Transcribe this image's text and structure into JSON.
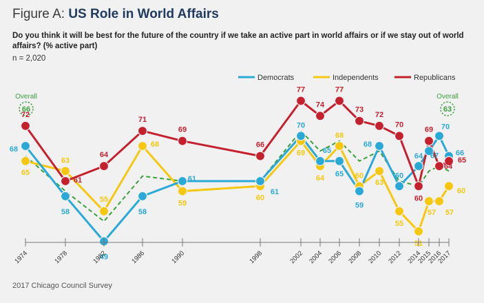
{
  "header": {
    "figure_label": "Figure A: ",
    "title": "US Role in World Affairs",
    "question": "Do you think it will be best for the future of the country if we take an active part in world affairs or if we stay out of world affairs? (% active part)",
    "n": "n = 2,020"
  },
  "footer": {
    "source": "2017 Chicago Council Survey"
  },
  "colors": {
    "democrats": "#2aa9d6",
    "independents": "#f5c80f",
    "republicans": "#c4202e",
    "overall": "#3aa03a"
  },
  "chart_data": {
    "type": "line",
    "title": "US Role in World Affairs",
    "xlabel": "",
    "ylabel": "% active part",
    "x": [
      "1974",
      "1978",
      "1982",
      "1986",
      "1990",
      "1998",
      "2002",
      "2004",
      "2006",
      "2008",
      "2010",
      "2012",
      "2014",
      "2015",
      "2016",
      "2017"
    ],
    "series": [
      {
        "name": "Democrats",
        "values": [
          68,
          58,
          49,
          58,
          61,
          61,
          70,
          65,
          65,
          59,
          68,
          60,
          64,
          67,
          70,
          66
        ]
      },
      {
        "name": "Independents",
        "values": [
          65,
          63,
          55,
          68,
          59,
          60,
          69,
          64,
          68,
          60,
          63,
          55,
          51,
          57,
          57,
          60
        ]
      },
      {
        "name": "Republicans",
        "values": [
          72,
          61,
          64,
          71,
          69,
          66,
          77,
          74,
          77,
          73,
          72,
          70,
          60,
          69,
          64,
          65
        ]
      },
      {
        "name": "Overall",
        "values": [
          66,
          59,
          53,
          62,
          61,
          61,
          71,
          67,
          69,
          65,
          67,
          61,
          60,
          63,
          64,
          63
        ]
      }
    ],
    "overall_labels": [
      {
        "label": "Overall",
        "value": "66"
      },
      {
        "label": "Overall",
        "value": "63"
      }
    ],
    "legend": [
      "Democrats",
      "Independents",
      "Republicans"
    ],
    "legend_position": "top-right",
    "ylim": [
      45,
      80
    ],
    "grid": false
  }
}
